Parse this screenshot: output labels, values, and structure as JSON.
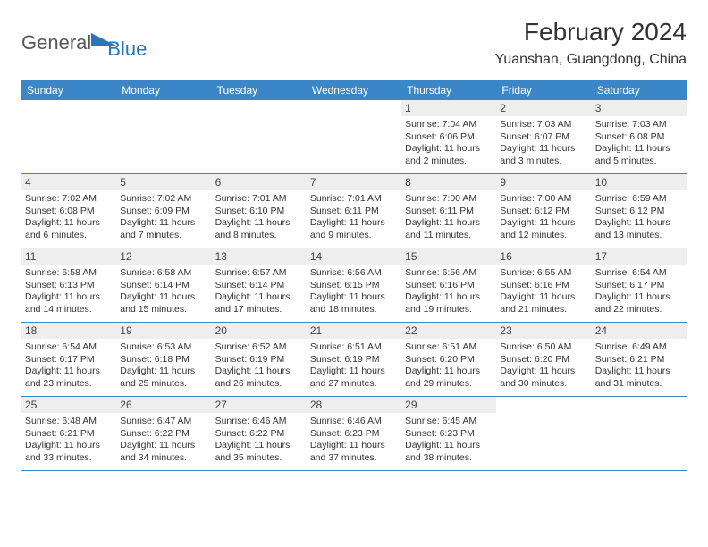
{
  "logo": {
    "general": "General",
    "blue": "Blue"
  },
  "title": "February 2024",
  "location": "Yuanshan, Guangdong, China",
  "colors": {
    "header_bg": "#3b86c6",
    "header_fg": "#ffffff",
    "band_bg": "#eeeeee",
    "rule": "#3b86c6",
    "text": "#333333",
    "logo_gray": "#585858",
    "logo_blue": "#2776bb"
  },
  "daynames": [
    "Sunday",
    "Monday",
    "Tuesday",
    "Wednesday",
    "Thursday",
    "Friday",
    "Saturday"
  ],
  "weeks": [
    [
      {
        "n": "",
        "sunrise": "",
        "sunset": "",
        "day1": "",
        "day2": ""
      },
      {
        "n": "",
        "sunrise": "",
        "sunset": "",
        "day1": "",
        "day2": ""
      },
      {
        "n": "",
        "sunrise": "",
        "sunset": "",
        "day1": "",
        "day2": ""
      },
      {
        "n": "",
        "sunrise": "",
        "sunset": "",
        "day1": "",
        "day2": ""
      },
      {
        "n": "1",
        "sunrise": "Sunrise: 7:04 AM",
        "sunset": "Sunset: 6:06 PM",
        "day1": "Daylight: 11 hours",
        "day2": "and 2 minutes."
      },
      {
        "n": "2",
        "sunrise": "Sunrise: 7:03 AM",
        "sunset": "Sunset: 6:07 PM",
        "day1": "Daylight: 11 hours",
        "day2": "and 3 minutes."
      },
      {
        "n": "3",
        "sunrise": "Sunrise: 7:03 AM",
        "sunset": "Sunset: 6:08 PM",
        "day1": "Daylight: 11 hours",
        "day2": "and 5 minutes."
      }
    ],
    [
      {
        "n": "4",
        "sunrise": "Sunrise: 7:02 AM",
        "sunset": "Sunset: 6:08 PM",
        "day1": "Daylight: 11 hours",
        "day2": "and 6 minutes."
      },
      {
        "n": "5",
        "sunrise": "Sunrise: 7:02 AM",
        "sunset": "Sunset: 6:09 PM",
        "day1": "Daylight: 11 hours",
        "day2": "and 7 minutes."
      },
      {
        "n": "6",
        "sunrise": "Sunrise: 7:01 AM",
        "sunset": "Sunset: 6:10 PM",
        "day1": "Daylight: 11 hours",
        "day2": "and 8 minutes."
      },
      {
        "n": "7",
        "sunrise": "Sunrise: 7:01 AM",
        "sunset": "Sunset: 6:11 PM",
        "day1": "Daylight: 11 hours",
        "day2": "and 9 minutes."
      },
      {
        "n": "8",
        "sunrise": "Sunrise: 7:00 AM",
        "sunset": "Sunset: 6:11 PM",
        "day1": "Daylight: 11 hours",
        "day2": "and 11 minutes."
      },
      {
        "n": "9",
        "sunrise": "Sunrise: 7:00 AM",
        "sunset": "Sunset: 6:12 PM",
        "day1": "Daylight: 11 hours",
        "day2": "and 12 minutes."
      },
      {
        "n": "10",
        "sunrise": "Sunrise: 6:59 AM",
        "sunset": "Sunset: 6:12 PM",
        "day1": "Daylight: 11 hours",
        "day2": "and 13 minutes."
      }
    ],
    [
      {
        "n": "11",
        "sunrise": "Sunrise: 6:58 AM",
        "sunset": "Sunset: 6:13 PM",
        "day1": "Daylight: 11 hours",
        "day2": "and 14 minutes."
      },
      {
        "n": "12",
        "sunrise": "Sunrise: 6:58 AM",
        "sunset": "Sunset: 6:14 PM",
        "day1": "Daylight: 11 hours",
        "day2": "and 15 minutes."
      },
      {
        "n": "13",
        "sunrise": "Sunrise: 6:57 AM",
        "sunset": "Sunset: 6:14 PM",
        "day1": "Daylight: 11 hours",
        "day2": "and 17 minutes."
      },
      {
        "n": "14",
        "sunrise": "Sunrise: 6:56 AM",
        "sunset": "Sunset: 6:15 PM",
        "day1": "Daylight: 11 hours",
        "day2": "and 18 minutes."
      },
      {
        "n": "15",
        "sunrise": "Sunrise: 6:56 AM",
        "sunset": "Sunset: 6:16 PM",
        "day1": "Daylight: 11 hours",
        "day2": "and 19 minutes."
      },
      {
        "n": "16",
        "sunrise": "Sunrise: 6:55 AM",
        "sunset": "Sunset: 6:16 PM",
        "day1": "Daylight: 11 hours",
        "day2": "and 21 minutes."
      },
      {
        "n": "17",
        "sunrise": "Sunrise: 6:54 AM",
        "sunset": "Sunset: 6:17 PM",
        "day1": "Daylight: 11 hours",
        "day2": "and 22 minutes."
      }
    ],
    [
      {
        "n": "18",
        "sunrise": "Sunrise: 6:54 AM",
        "sunset": "Sunset: 6:17 PM",
        "day1": "Daylight: 11 hours",
        "day2": "and 23 minutes."
      },
      {
        "n": "19",
        "sunrise": "Sunrise: 6:53 AM",
        "sunset": "Sunset: 6:18 PM",
        "day1": "Daylight: 11 hours",
        "day2": "and 25 minutes."
      },
      {
        "n": "20",
        "sunrise": "Sunrise: 6:52 AM",
        "sunset": "Sunset: 6:19 PM",
        "day1": "Daylight: 11 hours",
        "day2": "and 26 minutes."
      },
      {
        "n": "21",
        "sunrise": "Sunrise: 6:51 AM",
        "sunset": "Sunset: 6:19 PM",
        "day1": "Daylight: 11 hours",
        "day2": "and 27 minutes."
      },
      {
        "n": "22",
        "sunrise": "Sunrise: 6:51 AM",
        "sunset": "Sunset: 6:20 PM",
        "day1": "Daylight: 11 hours",
        "day2": "and 29 minutes."
      },
      {
        "n": "23",
        "sunrise": "Sunrise: 6:50 AM",
        "sunset": "Sunset: 6:20 PM",
        "day1": "Daylight: 11 hours",
        "day2": "and 30 minutes."
      },
      {
        "n": "24",
        "sunrise": "Sunrise: 6:49 AM",
        "sunset": "Sunset: 6:21 PM",
        "day1": "Daylight: 11 hours",
        "day2": "and 31 minutes."
      }
    ],
    [
      {
        "n": "25",
        "sunrise": "Sunrise: 6:48 AM",
        "sunset": "Sunset: 6:21 PM",
        "day1": "Daylight: 11 hours",
        "day2": "and 33 minutes."
      },
      {
        "n": "26",
        "sunrise": "Sunrise: 6:47 AM",
        "sunset": "Sunset: 6:22 PM",
        "day1": "Daylight: 11 hours",
        "day2": "and 34 minutes."
      },
      {
        "n": "27",
        "sunrise": "Sunrise: 6:46 AM",
        "sunset": "Sunset: 6:22 PM",
        "day1": "Daylight: 11 hours",
        "day2": "and 35 minutes."
      },
      {
        "n": "28",
        "sunrise": "Sunrise: 6:46 AM",
        "sunset": "Sunset: 6:23 PM",
        "day1": "Daylight: 11 hours",
        "day2": "and 37 minutes."
      },
      {
        "n": "29",
        "sunrise": "Sunrise: 6:45 AM",
        "sunset": "Sunset: 6:23 PM",
        "day1": "Daylight: 11 hours",
        "day2": "and 38 minutes."
      },
      {
        "n": "",
        "sunrise": "",
        "sunset": "",
        "day1": "",
        "day2": ""
      },
      {
        "n": "",
        "sunrise": "",
        "sunset": "",
        "day1": "",
        "day2": ""
      }
    ]
  ]
}
